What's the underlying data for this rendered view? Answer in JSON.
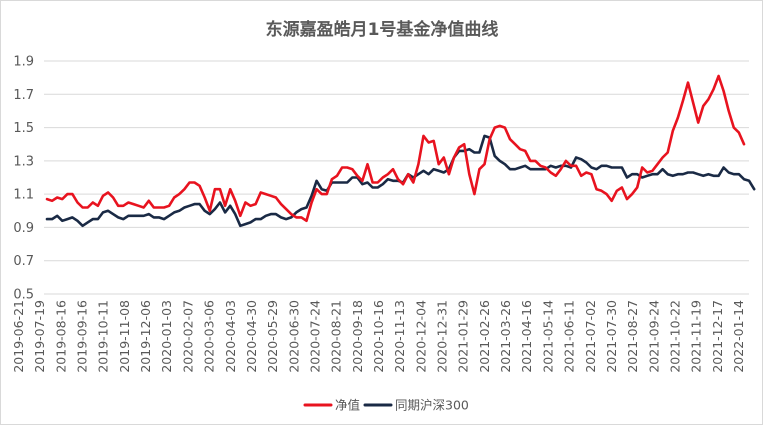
{
  "chart_data": {
    "type": "line",
    "title": "东源嘉盈皓月1号基金净值曲线",
    "xlabel": "",
    "ylabel": "",
    "ylim": [
      0.5,
      1.9
    ],
    "yticks": [
      "0.5",
      "0.7",
      "0.9",
      "1.1",
      "1.3",
      "1.5",
      "1.7",
      "1.9"
    ],
    "xtick_labels": [
      "2019-06-21",
      "2019-07-19",
      "2019-08-16",
      "2019-09-16",
      "2019-10-11",
      "2019-11-08",
      "2019-12-06",
      "2020-01-03",
      "2020-02-07",
      "2020-03-06",
      "2020-04-03",
      "2020-04-30",
      "2020-05-29",
      "2020-06-30",
      "2020-07-24",
      "2020-08-21",
      "2020-09-18",
      "2020-10-16",
      "2020-11-13",
      "2020-12-04",
      "2020-12-31",
      "2021-01-29",
      "2021-02-26",
      "2021-03-26",
      "2021-04-16",
      "2021-05-14",
      "2021-06-11",
      "2021-07-02",
      "2021-07-30",
      "2021-08-27",
      "2021-09-24",
      "2021-10-22",
      "2021-11-19",
      "2021-12-17",
      "2022-01-14"
    ],
    "legend_position": "bottom",
    "grid": "horizontal",
    "series": [
      {
        "name": "净值",
        "color": "#e8131f",
        "values": [
          1.07,
          1.06,
          1.08,
          1.07,
          1.1,
          1.1,
          1.05,
          1.02,
          1.02,
          1.05,
          1.03,
          1.09,
          1.11,
          1.08,
          1.03,
          1.03,
          1.05,
          1.04,
          1.03,
          1.02,
          1.06,
          1.02,
          1.02,
          1.02,
          1.03,
          1.08,
          1.1,
          1.13,
          1.17,
          1.17,
          1.15,
          1.08,
          1.0,
          1.13,
          1.13,
          1.03,
          1.13,
          1.06,
          0.97,
          1.05,
          1.03,
          1.04,
          1.11,
          1.1,
          1.09,
          1.08,
          1.04,
          1.01,
          0.98,
          0.96,
          0.96,
          0.94,
          1.05,
          1.13,
          1.1,
          1.1,
          1.19,
          1.21,
          1.26,
          1.26,
          1.25,
          1.21,
          1.18,
          1.28,
          1.17,
          1.17,
          1.2,
          1.22,
          1.25,
          1.19,
          1.16,
          1.22,
          1.17,
          1.28,
          1.45,
          1.41,
          1.42,
          1.28,
          1.32,
          1.22,
          1.32,
          1.38,
          1.4,
          1.22,
          1.1,
          1.25,
          1.28,
          1.43,
          1.5,
          1.51,
          1.5,
          1.43,
          1.4,
          1.37,
          1.36,
          1.3,
          1.3,
          1.27,
          1.26,
          1.23,
          1.21,
          1.25,
          1.3,
          1.27,
          1.27,
          1.21,
          1.23,
          1.22,
          1.13,
          1.12,
          1.1,
          1.06,
          1.12,
          1.14,
          1.07,
          1.1,
          1.14,
          1.26,
          1.23,
          1.24,
          1.28,
          1.32,
          1.35,
          1.48,
          1.56,
          1.66,
          1.77,
          1.65,
          1.53,
          1.63,
          1.67,
          1.73,
          1.81,
          1.72,
          1.6,
          1.5,
          1.47,
          1.4
        ]
      },
      {
        "name": "同期沪深300",
        "color": "#1a2a45",
        "values": [
          0.95,
          0.95,
          0.97,
          0.94,
          0.95,
          0.96,
          0.94,
          0.91,
          0.93,
          0.95,
          0.95,
          0.99,
          1.0,
          0.98,
          0.96,
          0.95,
          0.97,
          0.97,
          0.97,
          0.97,
          0.98,
          0.96,
          0.96,
          0.95,
          0.97,
          0.99,
          1.0,
          1.02,
          1.03,
          1.04,
          1.04,
          1.0,
          0.98,
          1.01,
          1.05,
          0.99,
          1.03,
          0.98,
          0.91,
          0.92,
          0.93,
          0.95,
          0.95,
          0.97,
          0.98,
          0.98,
          0.96,
          0.95,
          0.96,
          0.99,
          1.01,
          1.02,
          1.09,
          1.18,
          1.13,
          1.12,
          1.17,
          1.17,
          1.17,
          1.17,
          1.2,
          1.2,
          1.16,
          1.17,
          1.14,
          1.14,
          1.16,
          1.19,
          1.18,
          1.18,
          1.17,
          1.22,
          1.2,
          1.22,
          1.24,
          1.22,
          1.25,
          1.24,
          1.23,
          1.25,
          1.32,
          1.36,
          1.36,
          1.37,
          1.35,
          1.35,
          1.45,
          1.44,
          1.33,
          1.3,
          1.28,
          1.25,
          1.25,
          1.26,
          1.27,
          1.25,
          1.25,
          1.25,
          1.25,
          1.27,
          1.26,
          1.27,
          1.27,
          1.26,
          1.32,
          1.31,
          1.29,
          1.26,
          1.25,
          1.27,
          1.27,
          1.26,
          1.26,
          1.26,
          1.2,
          1.22,
          1.22,
          1.2,
          1.21,
          1.22,
          1.22,
          1.25,
          1.22,
          1.21,
          1.22,
          1.22,
          1.23,
          1.23,
          1.22,
          1.21,
          1.22,
          1.21,
          1.21,
          1.26,
          1.23,
          1.22,
          1.22,
          1.19,
          1.18,
          1.13
        ]
      }
    ]
  }
}
